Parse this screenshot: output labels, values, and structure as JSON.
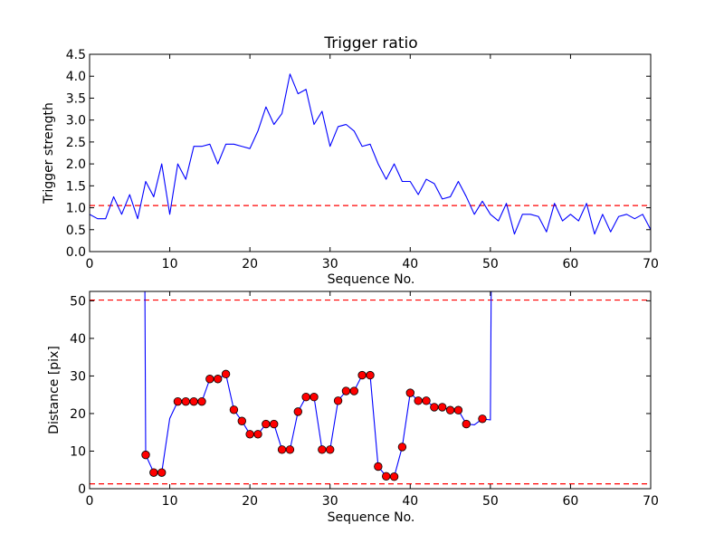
{
  "chart_data": [
    {
      "type": "line",
      "title": "Trigger ratio",
      "xlabel": "Sequence No.",
      "ylabel": "Trigger strength",
      "xlim": [
        0,
        70
      ],
      "ylim": [
        0,
        4.5
      ],
      "xticks": [
        "0",
        "10",
        "20",
        "30",
        "40",
        "50",
        "60",
        "70"
      ],
      "yticks": [
        "0.0",
        "0.5",
        "1.0",
        "1.5",
        "2.0",
        "2.5",
        "3.0",
        "3.5",
        "4.0",
        "4.5"
      ],
      "series": [
        {
          "color": "#0000ff",
          "x": [
            0,
            1,
            2,
            3,
            4,
            5,
            6,
            7,
            8,
            9,
            10,
            11,
            12,
            13,
            14,
            15,
            16,
            17,
            18,
            19,
            20,
            21,
            22,
            23,
            24,
            25,
            26,
            27,
            28,
            29,
            30,
            31,
            32,
            33,
            34,
            35,
            36,
            37,
            38,
            39,
            40,
            41,
            42,
            43,
            44,
            45,
            46,
            47,
            48,
            49,
            50,
            51,
            52,
            53,
            54,
            55,
            56,
            57,
            58,
            59,
            60,
            61,
            62,
            63,
            64,
            65,
            66,
            67,
            68,
            69,
            70
          ],
          "y": [
            0.85,
            0.75,
            0.75,
            1.25,
            0.85,
            1.3,
            0.75,
            1.6,
            1.25,
            2.0,
            0.85,
            2.0,
            1.65,
            2.4,
            2.4,
            2.45,
            2.0,
            2.45,
            2.45,
            2.4,
            2.35,
            2.75,
            3.3,
            2.9,
            3.15,
            4.05,
            3.6,
            3.7,
            2.9,
            3.2,
            2.4,
            2.85,
            2.9,
            2.75,
            2.4,
            2.45,
            2.0,
            1.65,
            2.0,
            1.6,
            1.6,
            1.3,
            1.65,
            1.55,
            1.2,
            1.25,
            1.6,
            1.25,
            0.85,
            1.15,
            0.85,
            0.7,
            1.1,
            0.4,
            0.85,
            0.85,
            0.8,
            0.45,
            1.1,
            0.7,
            0.85,
            0.7,
            1.1,
            0.4,
            0.85,
            0.45,
            0.8,
            0.85,
            0.75,
            0.85,
            0.5
          ]
        }
      ],
      "hlines": [
        {
          "y": 1.05,
          "color": "#ff0000",
          "style": "dashed"
        }
      ]
    },
    {
      "type": "line",
      "title": "",
      "xlabel": "Sequence No.",
      "ylabel": "Distance [pix]",
      "xlim": [
        0,
        70
      ],
      "ylim": [
        0,
        52.5
      ],
      "xticks": [
        "0",
        "10",
        "20",
        "30",
        "40",
        "50",
        "60",
        "70"
      ],
      "yticks": [
        "0",
        "10",
        "20",
        "30",
        "40",
        "50"
      ],
      "series": [
        {
          "color": "#0000ff",
          "marker_color": "#ff0000",
          "x": [
            6.9,
            7,
            8,
            9,
            10,
            11,
            12,
            13,
            14,
            15,
            16,
            17,
            18,
            19,
            20,
            21,
            22,
            23,
            24,
            25,
            26,
            27,
            28,
            29,
            30,
            31,
            32,
            33,
            34,
            35,
            36,
            37,
            38,
            39,
            40,
            41,
            42,
            43,
            44,
            45,
            46,
            47,
            48,
            49,
            50,
            50.1
          ],
          "y": [
            52.5,
            9,
            4.3,
            4.3,
            18.7,
            23.2,
            23.2,
            23.2,
            23.2,
            29.2,
            29.2,
            30.5,
            21,
            18,
            14.5,
            14.5,
            17.2,
            17.2,
            10.4,
            10.4,
            20.5,
            24.4,
            24.4,
            10.4,
            10.4,
            23.4,
            26,
            26,
            30.2,
            30.2,
            5.9,
            3.3,
            3.2,
            11.1,
            25.5,
            23.4,
            23.4,
            21.7,
            21.7,
            20.9,
            20.9,
            17.2,
            17,
            18.6,
            18.3,
            52.5
          ],
          "markers": [
            false,
            true,
            true,
            true,
            false,
            true,
            true,
            true,
            true,
            true,
            true,
            true,
            true,
            true,
            true,
            true,
            true,
            true,
            true,
            true,
            true,
            true,
            true,
            true,
            true,
            true,
            true,
            true,
            true,
            true,
            true,
            true,
            true,
            true,
            true,
            true,
            true,
            true,
            true,
            true,
            true,
            true,
            false,
            true,
            false,
            false
          ]
        }
      ],
      "hlines": [
        {
          "y": 50.2,
          "color": "#ff0000",
          "style": "dashed"
        },
        {
          "y": 1.3,
          "color": "#ff0000",
          "style": "dashed"
        }
      ]
    }
  ]
}
